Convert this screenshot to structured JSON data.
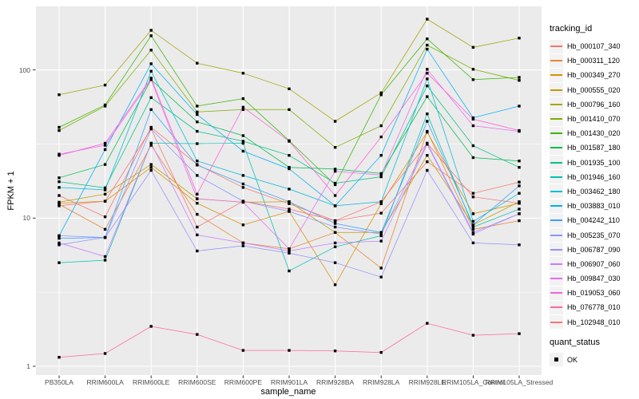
{
  "chart_data": {
    "type": "line",
    "title": "",
    "xlabel": "sample_name",
    "ylabel": "FPKM + 1",
    "y_scale": "log10",
    "y_ticks": [
      1,
      10,
      100
    ],
    "grid": "on",
    "legend_position": "right",
    "legend_title": "tracking_id",
    "quant_status": {
      "title": "quant_status",
      "items": [
        {
          "label": "OK"
        }
      ]
    },
    "point_shape": "filled-square",
    "point_color": "#000000",
    "samples": [
      "PB350LA",
      "RRIM600LA",
      "RRIM600LE",
      "RRIM600SE",
      "RRIM600PE",
      "RRIM901LA",
      "RRIM928BA",
      "RRIM928LA",
      "RRIM928LE",
      "RRIM105LA_Control",
      "RRIM105LA_Stressed"
    ],
    "series": [
      {
        "name": "Hb_000107_340",
        "color": "#F8766D",
        "values": [
          14.2,
          10.2,
          41,
          23,
          16.1,
          12.5,
          9.6,
          10.8,
          24,
          14.7,
          17.5
        ]
      },
      {
        "name": "Hb_000311_120",
        "color": "#EA8331",
        "values": [
          12.4,
          8.4,
          31,
          10.6,
          6.8,
          6.2,
          8.0,
          4.6,
          38.5,
          8.4,
          9.6
        ]
      },
      {
        "name": "Hb_000349_270",
        "color": "#D89000",
        "values": [
          12.6,
          13.0,
          22,
          12.6,
          9.0,
          11.1,
          3.55,
          12.5,
          38,
          10.7,
          12.6
        ]
      },
      {
        "name": "Hb_000555_020",
        "color": "#C09B00",
        "values": [
          12.8,
          14.5,
          23,
          13.5,
          12.8,
          12.9,
          8.0,
          8.0,
          26.5,
          9.0,
          12.9
        ]
      },
      {
        "name": "Hb_000796_160",
        "color": "#A3A500",
        "values": [
          68,
          79,
          185,
          111,
          95,
          74.5,
          45,
          70,
          220,
          142,
          164
        ]
      },
      {
        "name": "Hb_001410_070",
        "color": "#7CAE00",
        "values": [
          39,
          57,
          136,
          52,
          54,
          54,
          30,
          42,
          147,
          101,
          85
        ]
      },
      {
        "name": "Hb_001430_020",
        "color": "#39B600",
        "values": [
          41,
          58,
          170,
          57,
          64,
          33.3,
          16.8,
          68,
          162,
          86,
          89
        ]
      },
      {
        "name": "Hb_001587_180",
        "color": "#00BB4E",
        "values": [
          18.7,
          23,
          86,
          44.6,
          36,
          22,
          21.4,
          20,
          66,
          25.6,
          24.3
        ]
      },
      {
        "name": "Hb_001935_100",
        "color": "#00C087",
        "values": [
          17.6,
          16,
          65,
          38.5,
          33,
          26.5,
          17.2,
          19,
          78,
          30.8,
          22
        ]
      },
      {
        "name": "Hb_001946_160",
        "color": "#00C0AF",
        "values": [
          5.0,
          5.2,
          32,
          31.8,
          32,
          4.4,
          6.4,
          7.6,
          50.5,
          8.7,
          11.5
        ]
      },
      {
        "name": "Hb_003462_180",
        "color": "#00BCD8",
        "values": [
          16.1,
          15.5,
          98,
          24.3,
          19.4,
          15.7,
          12.1,
          12.9,
          87,
          9.5,
          14.7
        ]
      },
      {
        "name": "Hb_003883_010",
        "color": "#00B0F6",
        "values": [
          7.6,
          29,
          110,
          50,
          28.3,
          21.5,
          12.1,
          26.5,
          138,
          47.5,
          57
        ]
      },
      {
        "name": "Hb_004242_110",
        "color": "#35A2FF",
        "values": [
          7.3,
          7.4,
          54,
          22.8,
          17,
          12.9,
          9.2,
          8.0,
          45,
          9.0,
          16.5
        ]
      },
      {
        "name": "Hb_005235_070",
        "color": "#8794FF",
        "values": [
          7.6,
          7.4,
          40,
          19.4,
          13.0,
          11.1,
          8.7,
          7.8,
          32,
          8.0,
          10.7
        ]
      },
      {
        "name": "Hb_006787_090",
        "color": "#9590FF",
        "values": [
          6.6,
          7.4,
          21,
          6.0,
          6.5,
          5.8,
          5.0,
          4.0,
          21,
          6.8,
          6.6
        ]
      },
      {
        "name": "Hb_006907_060",
        "color": "#C77CFF",
        "values": [
          6.8,
          5.5,
          32,
          7.7,
          6.8,
          6.0,
          6.8,
          7.0,
          31.5,
          7.8,
          10.7
        ]
      },
      {
        "name": "Hb_009847_030",
        "color": "#E76BF3",
        "values": [
          27.0,
          31,
          86,
          13.5,
          12.8,
          6.2,
          20.7,
          19.5,
          101,
          42,
          38.5
        ]
      },
      {
        "name": "Hb_019053_060",
        "color": "#FB61D7",
        "values": [
          26.5,
          32,
          88,
          14.5,
          56,
          33,
          14.2,
          35.3,
          95,
          46.5,
          39
        ]
      },
      {
        "name": "Hb_076778_010",
        "color": "#FF68A1",
        "values": [
          1.15,
          1.22,
          1.86,
          1.64,
          1.28,
          1.28,
          1.27,
          1.24,
          1.95,
          1.62,
          1.66
        ]
      },
      {
        "name": "Hb_102948_010",
        "color": "#FB7179",
        "values": [
          12.1,
          13.0,
          40,
          8.7,
          13.0,
          11.5,
          9.6,
          12.9,
          32,
          13.9,
          12.6
        ]
      }
    ]
  },
  "colors": {
    "panel_background": "#EBEBEB",
    "gridline": "#FFFFFF",
    "legend_key_background": "#F2F2F2",
    "tick_label": "#4D4D4D",
    "tick_mark": "#333333"
  }
}
